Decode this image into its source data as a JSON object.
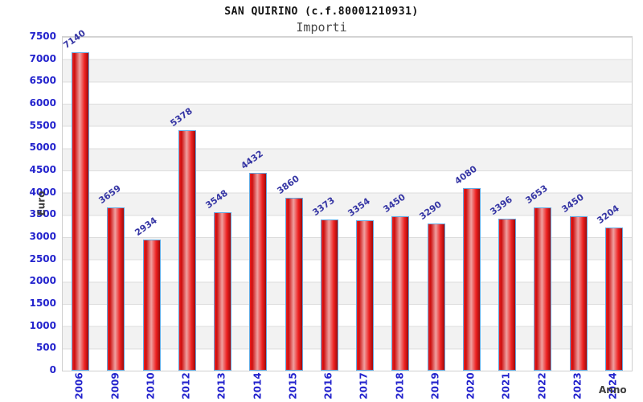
{
  "page": {
    "title": "SAN QUIRINO (c.f.80001210931)",
    "subtitle": "Importi"
  },
  "chart_data": {
    "type": "bar",
    "title": "SAN QUIRINO (c.f.80001210931)",
    "subtitle": "Importi",
    "xlabel": "Anno",
    "ylabel": "Euro",
    "categories": [
      "2006",
      "2009",
      "2010",
      "2012",
      "2013",
      "2014",
      "2015",
      "2016",
      "2017",
      "2018",
      "2019",
      "2020",
      "2021",
      "2022",
      "2023",
      "2024"
    ],
    "values": [
      7140,
      3659,
      2934,
      5378,
      3548,
      4432,
      3860,
      3373,
      3354,
      3450,
      3290,
      4080,
      3396,
      3653,
      3450,
      3204
    ],
    "ylim": [
      0,
      7500
    ],
    "ytick_step": 500,
    "grid": true,
    "legend": "none",
    "bands_alternating": true,
    "colors": {
      "bar_fill_main": "#ee2222",
      "bar_fill_edge": "#cc0f0f",
      "bar_fill_highlight": "#efa0a0",
      "bar_border": "#64a8e0",
      "tick_label": "#2323cd",
      "value_label": "#3535a4",
      "axis_title": "#3d3d3d",
      "band": "#f2f2f2",
      "grid_line": "#dcdcdc",
      "plot_border": "#cfcfcf"
    }
  }
}
